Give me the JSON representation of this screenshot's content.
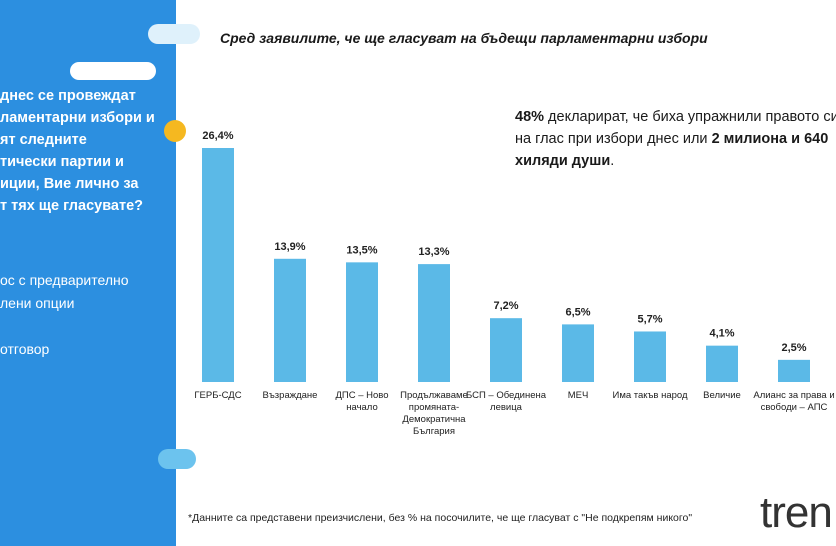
{
  "chart_data": {
    "type": "bar",
    "title": "Сред заявилите, че ще гласуват на бъдещи парламентарни избори",
    "categories": [
      "ГЕРБ-СДС",
      "Възраждане",
      "ДПС – Ново начало",
      "Продължаваме промяната-Демократична България",
      "БСП – Обединена левица",
      "МЕЧ",
      "Има такъв народ",
      "Величие",
      "Алианс за права и свободи – АПС"
    ],
    "values": [
      26.4,
      13.9,
      13.5,
      13.3,
      7.2,
      6.5,
      5.7,
      4.1,
      2.5
    ],
    "value_labels": [
      "26,4%",
      "13,9%",
      "13,5%",
      "13,3%",
      "7,2%",
      "6,5%",
      "5,7%",
      "4,1%",
      "2,5%"
    ],
    "color": "#5bb9e7",
    "annotation": [
      "48%",
      " декларират, че биха упражнили правото си на глас при избори днес или ",
      "2 милиона и 640 хиляди души",
      "."
    ],
    "footnote": "*Данните са представени преизчислени, без % на посочилите, че ще гласуват с \"Не подкрепям никого\""
  },
  "side_panel": {
    "question": [
      "днес се провеждат",
      "ламентарни избори и",
      "ят следните",
      "тически партии и",
      "иции, Вие лично за",
      "т тях ще гласувате?"
    ],
    "options": [
      "ос с предварително",
      "лени опции",
      "отговор"
    ]
  },
  "logo": "tren"
}
